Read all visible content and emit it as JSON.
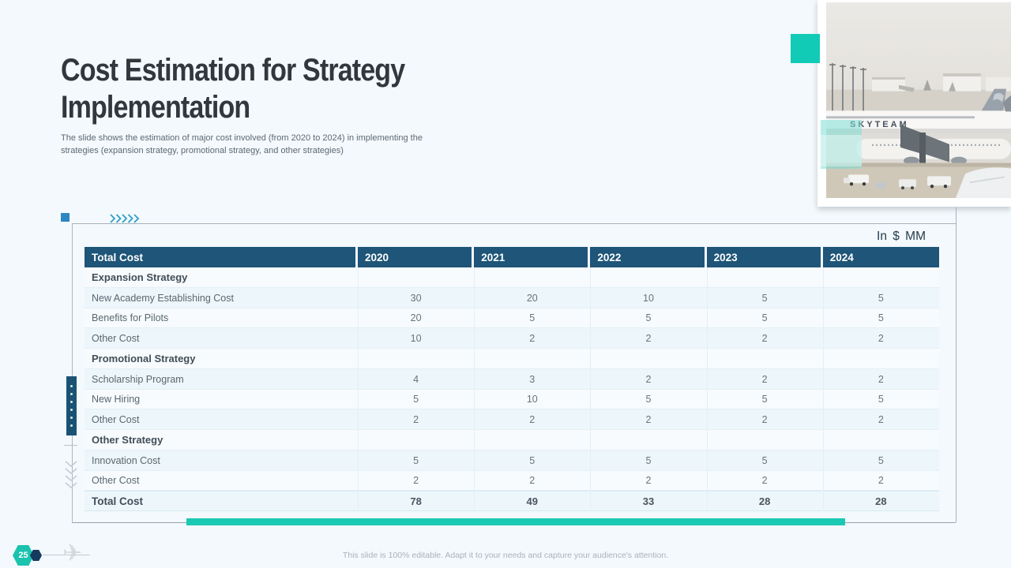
{
  "header": {
    "title_lines": [
      "Cost Estimation for Strategy",
      "Implementation"
    ],
    "subtitle": "The slide shows the estimation of major cost involved (from 2020 to 2024) in implementing the strategies (expansion strategy, promotional strategy, and other strategies)"
  },
  "table": {
    "unit_label": "In $ MM",
    "columns": [
      "Total Cost",
      "2020",
      "2021",
      "2022",
      "2023",
      "2024"
    ],
    "rows": [
      {
        "type": "section",
        "label": "Expansion Strategy",
        "values": [
          "",
          "",
          "",
          "",
          ""
        ]
      },
      {
        "type": "data",
        "label": "New Academy Establishing Cost",
        "values": [
          "30",
          "20",
          "10",
          "5",
          "5"
        ]
      },
      {
        "type": "data",
        "label": "Benefits for Pilots",
        "values": [
          "20",
          "5",
          "5",
          "5",
          "5"
        ]
      },
      {
        "type": "data",
        "label": "Other Cost",
        "values": [
          "10",
          "2",
          "2",
          "2",
          "2"
        ]
      },
      {
        "type": "section",
        "label": "Promotional Strategy",
        "values": [
          "",
          "",
          "",
          "",
          ""
        ]
      },
      {
        "type": "data",
        "label": "Scholarship Program",
        "values": [
          "4",
          "3",
          "2",
          "2",
          "2"
        ]
      },
      {
        "type": "data",
        "label": "New Hiring",
        "values": [
          "5",
          "10",
          "5",
          "5",
          "5"
        ]
      },
      {
        "type": "data",
        "label": "Other Cost",
        "values": [
          "2",
          "2",
          "2",
          "2",
          "2"
        ]
      },
      {
        "type": "section",
        "label": "Other Strategy",
        "values": [
          "",
          "",
          "",
          "",
          ""
        ]
      },
      {
        "type": "data",
        "label": "Innovation Cost",
        "values": [
          "5",
          "5",
          "5",
          "5",
          "5"
        ]
      },
      {
        "type": "data",
        "label": "Other Cost",
        "values": [
          "2",
          "2",
          "2",
          "2",
          "2"
        ]
      },
      {
        "type": "total",
        "label": "Total Cost",
        "values": [
          "78",
          "49",
          "33",
          "28",
          "28"
        ]
      }
    ]
  },
  "footer": {
    "page_number": "25",
    "note": "This slide is 100% editable.  Adapt it to your needs and capture your audience's attention."
  },
  "icons": {
    "airplane": "✈"
  },
  "colors": {
    "accent_teal": "#1cc9b3",
    "accent_blue": "#2e86c3",
    "table_header_blue": "#1e5578",
    "navy": "#143a5e",
    "slide_background": "#f3f9fc"
  }
}
